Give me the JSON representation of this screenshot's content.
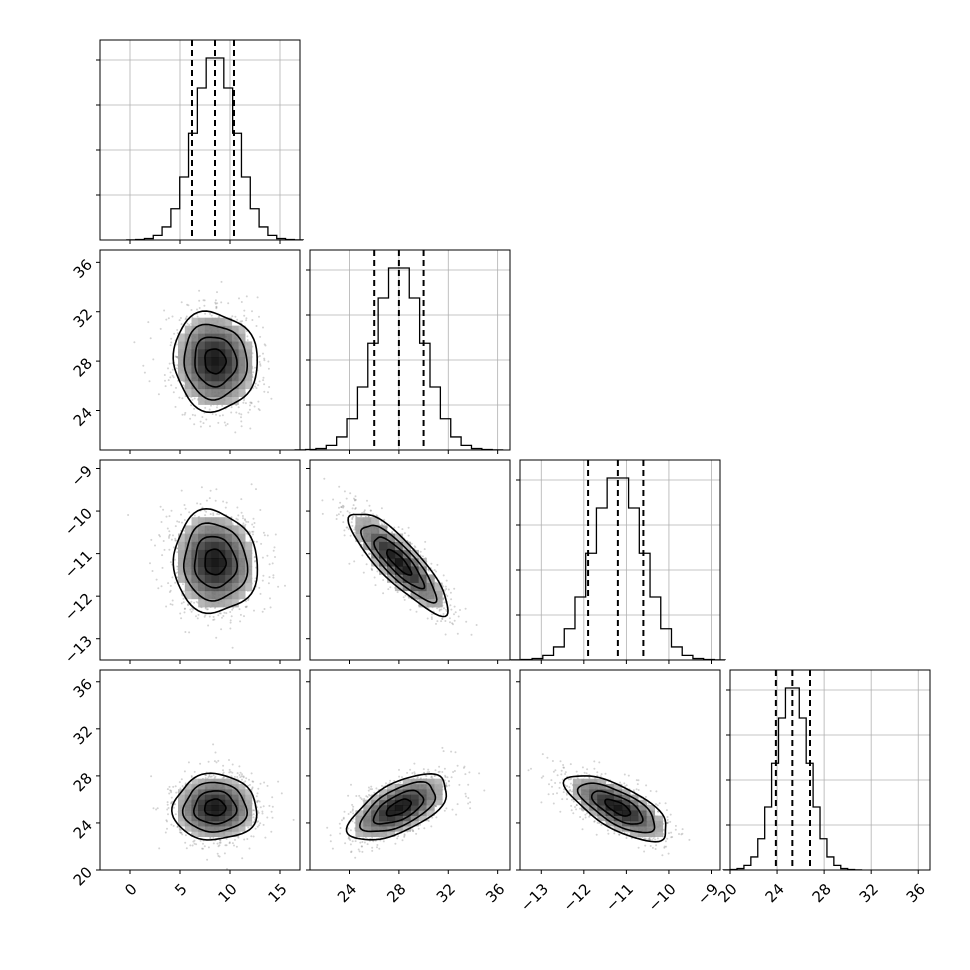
{
  "chart_data": {
    "type": "corner",
    "parameters": [
      {
        "index": 0,
        "range": [
          -3,
          17
        ],
        "ticks": [
          0,
          5,
          10,
          15
        ],
        "tick_labels": [
          "0",
          "5",
          "10",
          "15"
        ],
        "median": 8.5,
        "q16": 6.2,
        "q84": 10.4,
        "sigma": 2.1
      },
      {
        "index": 1,
        "range": [
          20.8,
          37
        ],
        "ticks": [
          24,
          28,
          32,
          36
        ],
        "tick_labels": [
          "24",
          "28",
          "32",
          "36"
        ],
        "median": 28.0,
        "q16": 26.0,
        "q84": 30.0,
        "sigma": 2.0
      },
      {
        "index": 2,
        "range": [
          -13.5,
          -8.8
        ],
        "ticks": [
          -13,
          -12,
          -11,
          -10,
          -9
        ],
        "tick_labels": [
          "−13",
          "−12",
          "−11",
          "−10",
          "−9"
        ],
        "median": -11.2,
        "q16": -11.9,
        "q84": -10.6,
        "sigma": 0.6
      },
      {
        "index": 3,
        "range": [
          20,
          37
        ],
        "ticks": [
          20,
          24,
          28,
          32,
          36
        ],
        "tick_labels": [
          "20",
          "24",
          "28",
          "32",
          "36"
        ],
        "median": 25.3,
        "q16": 23.9,
        "q84": 26.8,
        "sigma": 1.4
      }
    ],
    "correlations": [
      {
        "pair": [
          0,
          1
        ],
        "rho": -0.05
      },
      {
        "pair": [
          0,
          2
        ],
        "rho": -0.05
      },
      {
        "pair": [
          1,
          2
        ],
        "rho": -0.85
      },
      {
        "pair": [
          0,
          3
        ],
        "rho": 0.0
      },
      {
        "pair": [
          1,
          3
        ],
        "rho": 0.6
      },
      {
        "pair": [
          2,
          3
        ],
        "rho": -0.7
      }
    ],
    "contour_levels": [
      0.5,
      1.0,
      1.5,
      2.0
    ],
    "y_tick_rows": [
      {
        "row": 1,
        "ticks": [
          24,
          28,
          32,
          36
        ],
        "tick_labels": [
          "24",
          "28",
          "32",
          "36"
        ]
      },
      {
        "row": 2,
        "ticks": [
          -13,
          -12,
          -11,
          -10,
          -9
        ],
        "tick_labels": [
          "−13",
          "−12",
          "−11",
          "−10",
          "−9"
        ]
      },
      {
        "row": 3,
        "ticks": [
          20,
          24,
          28,
          32,
          36
        ],
        "tick_labels": [
          "20",
          "24",
          "28",
          "32",
          "36"
        ]
      }
    ],
    "grid": true,
    "histogram_bins": 20,
    "colors": {
      "points": "#808080",
      "lines": "#000000",
      "grid": "#b0b0b0"
    }
  }
}
